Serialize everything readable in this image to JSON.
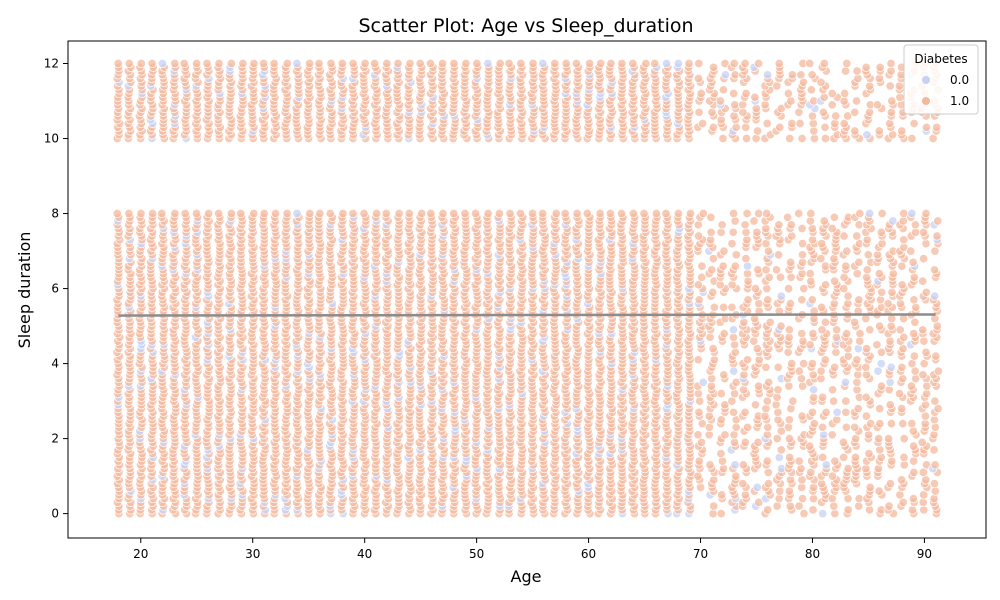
{
  "chart_data": {
    "type": "scatter",
    "title": "Scatter Plot: Age vs Sleep_duration",
    "xlabel": "Age",
    "ylabel": "Sleep duration",
    "xlim": [
      13.5,
      95.5
    ],
    "ylim": [
      -0.65,
      12.6
    ],
    "xticks": [
      20,
      30,
      40,
      50,
      60,
      70,
      80,
      90
    ],
    "yticks": [
      0,
      2,
      4,
      6,
      8,
      10,
      12
    ],
    "x_range": [
      18,
      91
    ],
    "y_bands": [
      [
        0,
        8
      ],
      [
        10,
        12
      ]
    ],
    "legend": {
      "title": "Diabetes",
      "position": "top-right",
      "entries": [
        {
          "label": "0.0",
          "color": "#c5d2f5"
        },
        {
          "label": "1.0",
          "color": "#f4b89e"
        }
      ]
    },
    "trend_line": {
      "x": [
        18,
        91
      ],
      "y": [
        5.28,
        5.31
      ],
      "color": "#8c8c8c"
    },
    "series": [
      {
        "label": "0.0",
        "color": "#c5d2f5",
        "share": 0.1
      },
      {
        "label": "1.0",
        "color": "#f4b89e",
        "share": 0.9
      }
    ],
    "grid": false
  }
}
